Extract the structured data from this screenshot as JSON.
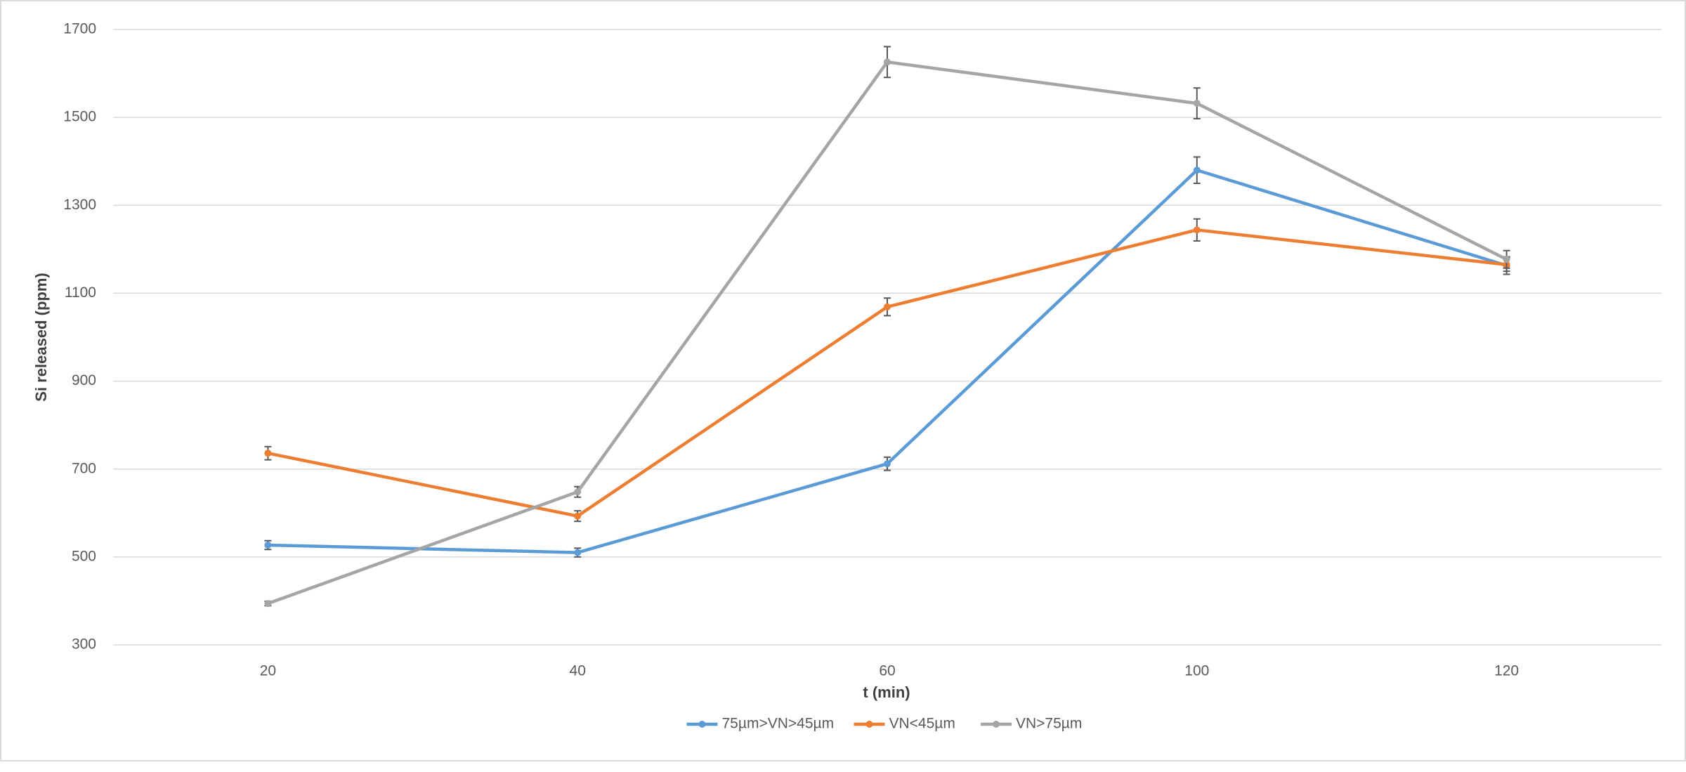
{
  "chart_data": {
    "type": "line",
    "x_label": "t (min)",
    "y_label": "Si released (ppm)",
    "categories": [
      "20",
      "40",
      "60",
      "100",
      "120"
    ],
    "ylim": [
      300,
      1700
    ],
    "yticks": [
      300,
      500,
      700,
      900,
      1100,
      1300,
      1500,
      1700
    ],
    "grid": true,
    "legend": "bottom",
    "series": [
      {
        "name": "75µm>VN>45µm",
        "color": "#5b9bd5",
        "values": [
          527,
          510,
          712,
          1380,
          1163
        ],
        "errors": [
          10,
          10,
          15,
          30,
          20
        ]
      },
      {
        "name": "VN<45µm",
        "color": "#ed7d31",
        "values": [
          736,
          593,
          1069,
          1244,
          1165
        ],
        "errors": [
          15,
          12,
          20,
          25,
          15
        ]
      },
      {
        "name": "VN>75µm",
        "color": "#a5a5a5",
        "values": [
          394,
          648,
          1626,
          1532,
          1177
        ],
        "errors": [
          5,
          12,
          35,
          35,
          20
        ]
      }
    ]
  }
}
